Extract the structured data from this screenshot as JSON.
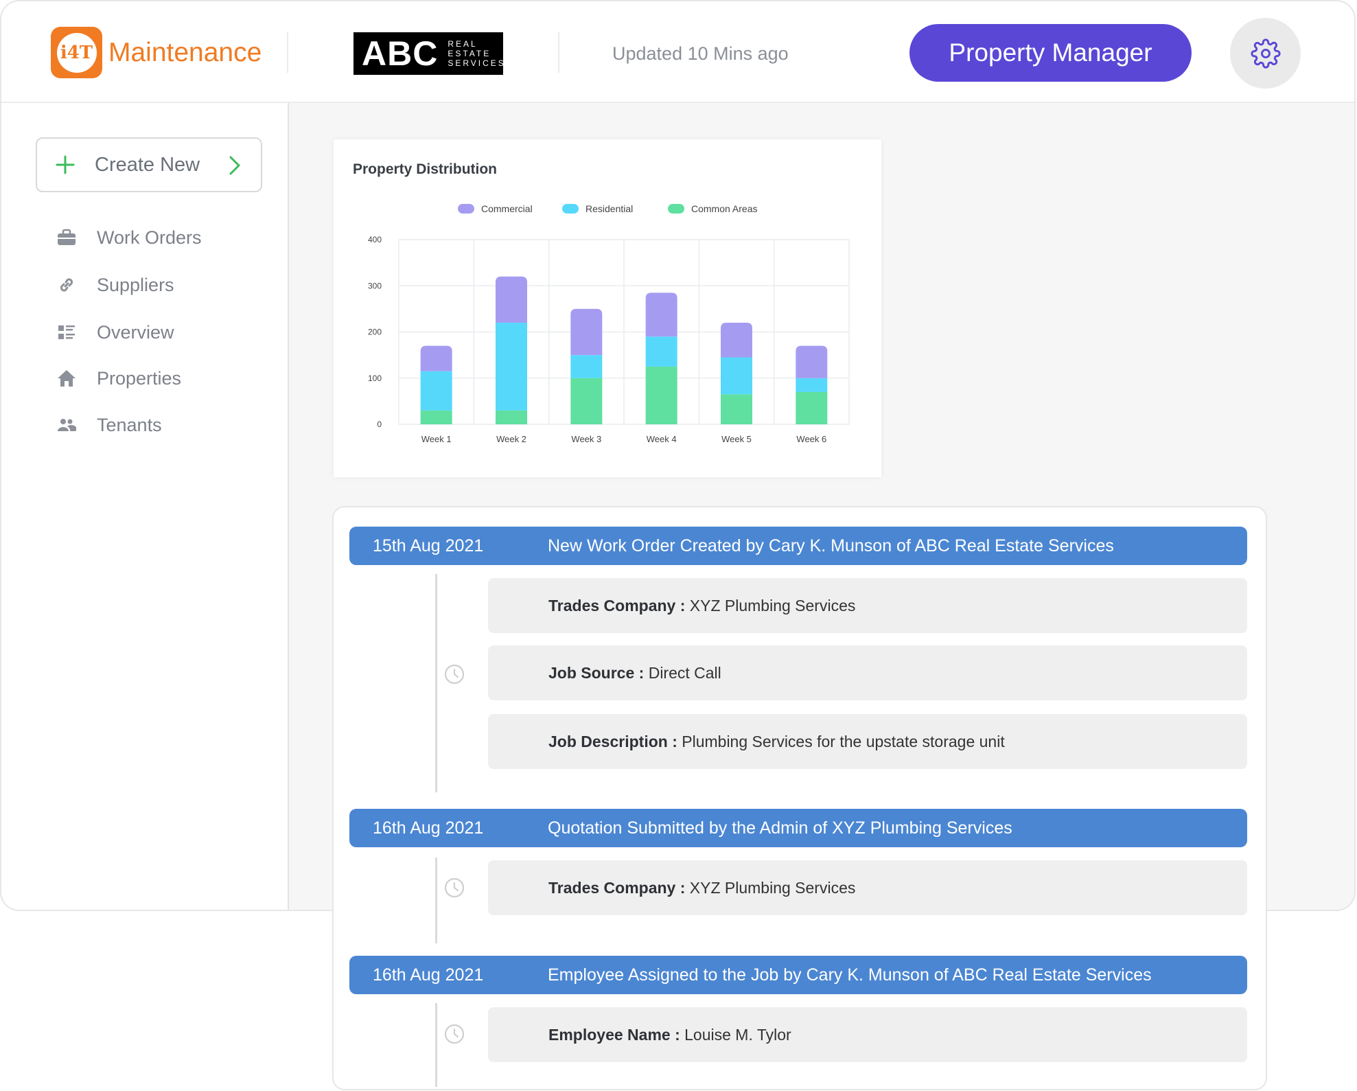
{
  "header": {
    "app_name": "Maintenance",
    "logo_text": "i4T",
    "company_logo": {
      "big": "ABC",
      "line1": "REAL",
      "line2": "ESTATE",
      "line3": "SERVICES"
    },
    "updated": "Updated 10 Mins ago",
    "role_button": "Property Manager",
    "accent": "#5a47d6",
    "brand": "#f07b22",
    "icons": {
      "settings": "gear-icon"
    }
  },
  "sidebar": {
    "create_label": "Create New",
    "items": [
      {
        "label": "Work Orders",
        "icon": "briefcase-icon"
      },
      {
        "label": "Suppliers",
        "icon": "link-icon"
      },
      {
        "label": "Overview",
        "icon": "list-icon"
      },
      {
        "label": "Properties",
        "icon": "home-icon"
      },
      {
        "label": "Tenants",
        "icon": "people-icon"
      }
    ]
  },
  "chart_data": {
    "type": "bar",
    "stacked": true,
    "title": "Property Distribution",
    "categories": [
      "Week 1",
      "Week 2",
      "Week 3",
      "Week 4",
      "Week 5",
      "Week 6"
    ],
    "series": [
      {
        "name": "Common Areas",
        "color": "#5fe0a0",
        "values": [
          30,
          30,
          100,
          125,
          65,
          70
        ]
      },
      {
        "name": "Residential",
        "color": "#56d8fb",
        "values": [
          85,
          190,
          50,
          65,
          80,
          30
        ]
      },
      {
        "name": "Commercial",
        "color": "#a59cf2",
        "values": [
          55,
          100,
          100,
          95,
          75,
          70
        ]
      }
    ],
    "legend_order": [
      "Commercial",
      "Residential",
      "Common Areas"
    ],
    "yticks": [
      "0",
      "100",
      "200",
      "300",
      "400"
    ],
    "ylim": [
      0,
      400
    ],
    "grid": true,
    "legend": "top"
  },
  "timeline": [
    {
      "date": "15th Aug 2021",
      "title": "New Work Order Created by Cary K. Munson of ABC Real Estate Services",
      "rows": [
        {
          "label": "Trades Company :",
          "value": "XYZ Plumbing Services"
        },
        {
          "label": "Job Source :",
          "value": "Direct Call"
        },
        {
          "label": "Job Description :",
          "value": "Plumbing Services for the upstate storage unit"
        }
      ]
    },
    {
      "date": "16th Aug 2021",
      "title": "Quotation Submitted by the Admin of XYZ Plumbing Services",
      "rows": [
        {
          "label": "Trades Company :",
          "value": "XYZ Plumbing Services"
        }
      ]
    },
    {
      "date": "16th Aug 2021",
      "title": "Employee Assigned to the Job by Cary K. Munson of ABC Real Estate Services",
      "rows": [
        {
          "label": "Employee Name :",
          "value": "Louise M. Tylor"
        }
      ]
    }
  ]
}
